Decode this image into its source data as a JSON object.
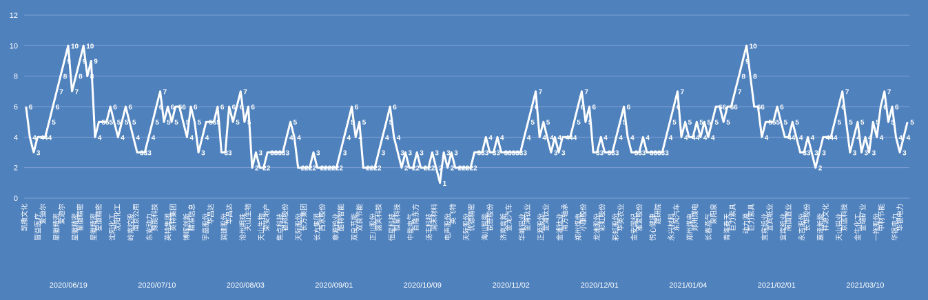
{
  "chart_data": {
    "type": "line",
    "ylim": [
      0,
      12
    ],
    "y_ticks": [
      "0",
      "2",
      "4",
      "6",
      "8",
      "10",
      "12"
    ],
    "grid": true,
    "colors": {
      "background": "#4f81bd",
      "line": "#ffffff",
      "grid": "#7fa1d3",
      "text": "#ffffff"
    },
    "values": [
      6,
      4,
      3,
      4,
      4,
      4,
      5,
      6,
      7,
      8,
      9,
      10,
      7,
      8,
      9,
      10,
      8,
      9,
      4,
      5,
      5,
      5,
      6,
      5,
      4,
      5,
      6,
      5,
      4,
      3,
      3,
      3,
      4,
      5,
      6,
      7,
      5,
      6,
      5,
      6,
      6,
      5,
      4,
      6,
      5,
      3,
      4,
      5,
      5,
      5,
      6,
      3,
      3,
      6,
      5,
      6,
      7,
      5,
      6,
      2,
      3,
      2,
      2,
      3,
      3,
      3,
      3,
      3,
      4,
      5,
      4,
      2,
      2,
      2,
      2,
      3,
      2,
      2,
      2,
      2,
      2,
      2,
      3,
      4,
      5,
      6,
      4,
      5,
      2,
      2,
      2,
      2,
      3,
      4,
      5,
      6,
      4,
      3,
      2,
      3,
      2,
      2,
      3,
      2,
      2,
      2,
      3,
      2,
      1,
      3,
      2,
      3,
      2,
      2,
      2,
      2,
      2,
      3,
      3,
      3,
      4,
      3,
      3,
      4,
      3,
      3,
      3,
      3,
      3,
      3,
      4,
      5,
      6,
      7,
      4,
      5,
      4,
      3,
      4,
      3,
      4,
      4,
      4,
      5,
      6,
      7,
      5,
      6,
      3,
      3,
      4,
      3,
      3,
      3,
      4,
      5,
      6,
      4,
      3,
      3,
      3,
      4,
      3,
      3,
      3,
      3,
      3,
      4,
      5,
      6,
      7,
      4,
      5,
      4,
      4,
      5,
      4,
      5,
      4,
      5,
      6,
      6,
      5,
      6,
      6,
      7,
      8,
      9,
      10,
      8,
      6,
      6,
      4,
      5,
      5,
      5,
      6,
      5,
      4,
      4,
      5,
      4,
      3,
      3,
      4,
      3,
      2,
      3,
      4,
      4,
      4,
      5,
      6,
      7,
      5,
      3,
      4,
      5,
      3,
      4,
      3,
      5,
      4,
      6,
      7,
      5,
      6,
      4,
      3,
      4,
      5
    ],
    "stocks": [
      "凯撒文化",
      "冒益医疗",
      "爱迪尔",
      "星徽精密",
      "爱迪尔",
      "星徽精密",
      "星徽精密",
      "星徽精密",
      "星徽精密",
      "沈阳化工",
      "沈阳化工",
      "岭南控股",
      "南京公用",
      "东安动力",
      "豫能科技",
      "英特集团",
      "英特集团",
      "博晖创新",
      "精准信息",
      "宇晶股份",
      "华昌达",
      "润建股份",
      "华昌达",
      "沧州明珠",
      "天山生物",
      "天山生物",
      "荣安地产",
      "焦点科技",
      "银邦股份",
      "天际股份",
      "长方集团",
      "长方集团",
      "西水股份",
      "章源钨业",
      "酷特智能",
      "双良节能",
      "双良节能",
      "正川股份",
      "露笑科技",
      "恒星科技",
      "恒星科技",
      "中能电气",
      "百隆东方",
      "汤丰科技",
      "润禾材料",
      "电声股份",
      "英飞特",
      "天际股份",
      "优德精密",
      "海川智能",
      "锐奇股份",
      "济南高新",
      "金龙汽车",
      "华峰铝业",
      "金浦钛业",
      "正源股份",
      "金浦钛业",
      "金浦钛业",
      "南方轴承",
      "郑州煤电",
      "小康股份",
      "龙洲股份",
      "彩虹股份",
      "彩虹股份",
      "华英农业",
      "金安国纪",
      "雅爱股份",
      "悦心健康",
      "建研院",
      "永兴材料",
      "东风汽车",
      "郑州煤电",
      "郑州煤电",
      "长春燕气",
      "泉阳泉",
      "青海春天",
      "巨力索具",
      "动力源",
      "巨力索具",
      "宜宾纸业",
      "宜宾纸业",
      "宜宾纸业",
      "南国置业",
      "永吉股份",
      "长华股份",
      "嘉泽新能",
      "祥源文化",
      "天山铝业",
      "京蓝科技",
      "金牛化工",
      "金瑞矿业",
      "一拖股份",
      "中材节能",
      "华银电力",
      "华银电力"
    ],
    "date_labels": [
      "2020/06/19",
      "2020/07/10",
      "2020/08/03",
      "2020/09/01",
      "2020/10/09",
      "2020/11/02",
      "2020/12/01",
      "2021/01/04",
      "2021/02/01",
      "2021/03/10"
    ]
  }
}
